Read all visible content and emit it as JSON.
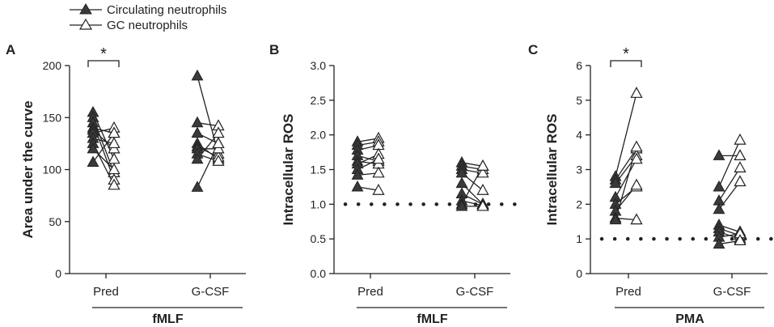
{
  "legend": {
    "circulating_label": "Circulating neutrophils",
    "gc_label": "GC neutrophils",
    "circulating_marker": "filled-triangle",
    "gc_marker": "open-triangle"
  },
  "colors": {
    "ink": "#222222",
    "marker_fill": "#3a3a3a",
    "open_fill": "#ffffff"
  },
  "chart_data": [
    {
      "panel": "A",
      "type": "scatter",
      "subtype": "paired-before-after",
      "ylabel": "Area under the curve",
      "ylim": [
        0,
        200
      ],
      "yticks": [
        0,
        50,
        100,
        150,
        200
      ],
      "ytick_labels": [
        "0",
        "50",
        "100",
        "150",
        "200"
      ],
      "categories": [
        "Pred",
        "G-CSF"
      ],
      "group_label": "fMLF",
      "reference_line": null,
      "significance": [
        {
          "category": "Pred",
          "label": "*"
        }
      ],
      "groups": [
        {
          "category": "Pred",
          "circulating": [
            155,
            150,
            145,
            140,
            138,
            135,
            130,
            125,
            120,
            107
          ],
          "gc": [
            110,
            97,
            90,
            135,
            120,
            140,
            125,
            85,
            100,
            135
          ]
        },
        {
          "category": "G-CSF",
          "circulating": [
            190,
            145,
            135,
            125,
            122,
            120,
            115,
            110,
            83
          ],
          "gc": [
            115,
            142,
            125,
            110,
            112,
            120,
            108,
            135,
            125
          ]
        }
      ]
    },
    {
      "panel": "B",
      "type": "scatter",
      "subtype": "paired-before-after",
      "ylabel": "Intracellular ROS",
      "ylim": [
        0,
        3
      ],
      "yticks": [
        0,
        0.5,
        1,
        1.5,
        2,
        2.5,
        3
      ],
      "ytick_labels": [
        "0.0",
        "0.5",
        "1.0",
        "1.5",
        "2.0",
        "2.5",
        "3.0"
      ],
      "categories": [
        "Pred",
        "G-CSF"
      ],
      "group_label": "fMLF",
      "reference_line": 1,
      "significance": [],
      "groups": [
        {
          "category": "Pred",
          "circulating": [
            1.9,
            1.85,
            1.78,
            1.7,
            1.62,
            1.58,
            1.5,
            1.42,
            1.25
          ],
          "gc": [
            1.95,
            1.9,
            1.85,
            1.62,
            1.58,
            1.72,
            1.65,
            1.45,
            1.2
          ]
        },
        {
          "category": "G-CSF",
          "circulating": [
            1.6,
            1.55,
            1.5,
            1.45,
            1.3,
            1.15,
            1.05,
            1.0,
            0.97
          ],
          "gc": [
            1.55,
            1.5,
            1.45,
            1.2,
            1.0,
            1.0,
            0.98,
            1.55,
            0.97
          ]
        }
      ]
    },
    {
      "panel": "C",
      "type": "scatter",
      "subtype": "paired-before-after",
      "ylabel": "Intracellular ROS",
      "ylim": [
        0,
        6
      ],
      "yticks": [
        0,
        1,
        2,
        3,
        4,
        5,
        6
      ],
      "ytick_labels": [
        "0",
        "1",
        "2",
        "3",
        "4",
        "5",
        "6"
      ],
      "categories": [
        "Pred",
        "G-CSF"
      ],
      "group_label": "PMA",
      "reference_line": 1,
      "significance": [
        {
          "category": "Pred",
          "label": "*"
        }
      ],
      "groups": [
        {
          "category": "Pred",
          "circulating": [
            2.8,
            2.7,
            2.6,
            2.2,
            2.0,
            1.8,
            1.6,
            1.55
          ],
          "gc": [
            5.2,
            3.6,
            3.4,
            3.3,
            2.5,
            2.55,
            1.55,
            3.65
          ]
        },
        {
          "category": "G-CSF",
          "circulating": [
            3.4,
            2.5,
            2.1,
            1.85,
            1.4,
            1.3,
            1.2,
            1.05,
            0.85
          ],
          "gc": [
            3.4,
            3.85,
            3.05,
            2.65,
            1.2,
            1.1,
            1.0,
            1.15,
            0.95
          ]
        }
      ]
    }
  ]
}
